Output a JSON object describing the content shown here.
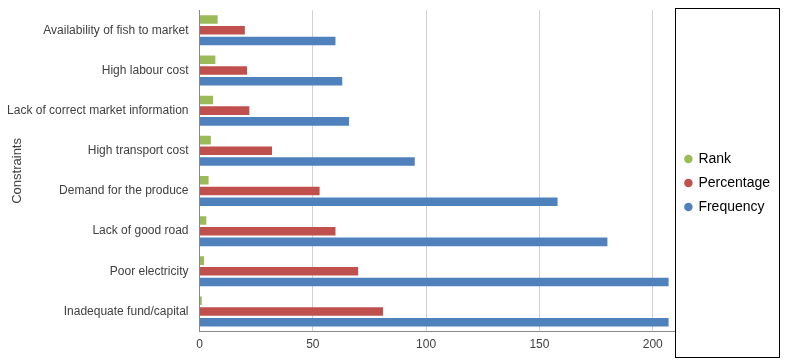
{
  "chart_data": {
    "type": "bar",
    "orientation": "horizontal",
    "ylabel": "Constraints",
    "categories": [
      "Availability of fish to market",
      "High labour cost",
      "Lack of correct market information",
      "High transport cost",
      "Demand for the produce",
      "Lack of good road",
      "Poor electricity",
      "Inadequate fund/capital"
    ],
    "series": [
      {
        "name": "Rank",
        "color": "#9bbb59",
        "values": [
          8,
          7,
          6,
          5,
          4,
          3,
          2,
          1
        ]
      },
      {
        "name": "Percentage",
        "color": "#c0504d",
        "values": [
          20,
          21,
          22,
          32,
          53,
          60,
          70,
          81
        ]
      },
      {
        "name": "Frequency",
        "color": "#4f81bd",
        "values": [
          60,
          63,
          66,
          95,
          158,
          180,
          207,
          207
        ]
      }
    ],
    "xlim": [
      0,
      210
    ],
    "xticks": [
      0,
      50,
      100,
      150,
      200
    ],
    "grid": true,
    "legend": "right"
  }
}
